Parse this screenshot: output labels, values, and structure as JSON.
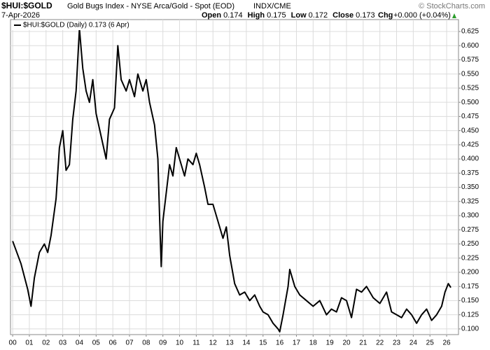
{
  "chart_data": {
    "type": "line",
    "title": "$HUI:$GOLD",
    "subtitle": "Gold Bugs Index - NYSE Arca/Gold - Spot (EOD)",
    "exchange": "INDX/CME",
    "source": "© StockCharts.com",
    "date": "7-Apr-2026",
    "ohlc": [
      {
        "label": "Open",
        "value": 0.174
      },
      {
        "label": "High",
        "value": 0.175
      },
      {
        "label": "Low",
        "value": 0.172
      },
      {
        "label": "Close",
        "value": 0.173
      }
    ],
    "change_label": "Chg",
    "change": "+0.000 (+0.04%)",
    "grid": true,
    "xlim": [
      1999.87,
      2026.71
    ],
    "ylim": [
      0.09,
      0.646
    ],
    "xticks": [
      {
        "value": 2000,
        "label": "00"
      },
      {
        "value": 2001,
        "label": "01"
      },
      {
        "value": 2002,
        "label": "02"
      },
      {
        "value": 2003,
        "label": "03"
      },
      {
        "value": 2004,
        "label": "04"
      },
      {
        "value": 2005,
        "label": "05"
      },
      {
        "value": 2006,
        "label": "06"
      },
      {
        "value": 2007,
        "label": "07"
      },
      {
        "value": 2008,
        "label": "08"
      },
      {
        "value": 2009,
        "label": "09"
      },
      {
        "value": 2010,
        "label": "10"
      },
      {
        "value": 2011,
        "label": "11"
      },
      {
        "value": 2012,
        "label": "12"
      },
      {
        "value": 2013,
        "label": "13"
      },
      {
        "value": 2014,
        "label": "14"
      },
      {
        "value": 2015,
        "label": "15"
      },
      {
        "value": 2016,
        "label": "16"
      },
      {
        "value": 2017,
        "label": "17"
      },
      {
        "value": 2018,
        "label": "18"
      },
      {
        "value": 2019,
        "label": "19"
      },
      {
        "value": 2020,
        "label": "20"
      },
      {
        "value": 2021,
        "label": "21"
      },
      {
        "value": 2022,
        "label": "22"
      },
      {
        "value": 2023,
        "label": "23"
      },
      {
        "value": 2024,
        "label": "24"
      },
      {
        "value": 2025,
        "label": "25"
      },
      {
        "value": 2026,
        "label": "26"
      }
    ],
    "yticks": [
      {
        "value": 0.1,
        "label": "0.100"
      },
      {
        "value": 0.125,
        "label": "0.125"
      },
      {
        "value": 0.15,
        "label": "0.150"
      },
      {
        "value": 0.175,
        "label": "0.175"
      },
      {
        "value": 0.2,
        "label": "0.200"
      },
      {
        "value": 0.225,
        "label": "0.225"
      },
      {
        "value": 0.25,
        "label": "0.250"
      },
      {
        "value": 0.275,
        "label": "0.275"
      },
      {
        "value": 0.3,
        "label": "0.300"
      },
      {
        "value": 0.325,
        "label": "0.325"
      },
      {
        "value": 0.35,
        "label": "0.350"
      },
      {
        "value": 0.375,
        "label": "0.375"
      },
      {
        "value": 0.4,
        "label": "0.400"
      },
      {
        "value": 0.425,
        "label": "0.425"
      },
      {
        "value": 0.45,
        "label": "0.450"
      },
      {
        "value": 0.475,
        "label": "0.475"
      },
      {
        "value": 0.5,
        "label": "0.500"
      },
      {
        "value": 0.525,
        "label": "0.525"
      },
      {
        "value": 0.55,
        "label": "0.550"
      },
      {
        "value": 0.575,
        "label": "0.575"
      },
      {
        "value": 0.6,
        "label": "0.600"
      },
      {
        "value": 0.625,
        "label": "0.625"
      }
    ],
    "x": [
      2000.0,
      2000.5,
      2000.9,
      2001.1,
      2001.3,
      2001.6,
      2001.9,
      2002.1,
      2002.3,
      2002.6,
      2002.8,
      2003.0,
      2003.2,
      2003.4,
      2003.6,
      2003.8,
      2004.0,
      2004.2,
      2004.4,
      2004.6,
      2004.8,
      2005.0,
      2005.3,
      2005.6,
      2005.8,
      2006.1,
      2006.3,
      2006.5,
      2006.8,
      2007.0,
      2007.3,
      2007.5,
      2007.8,
      2008.0,
      2008.2,
      2008.5,
      2008.7,
      2008.8,
      2008.9,
      2009.0,
      2009.2,
      2009.4,
      2009.6,
      2009.8,
      2010.0,
      2010.3,
      2010.5,
      2010.8,
      2011.0,
      2011.2,
      2011.5,
      2011.7,
      2012.0,
      2012.3,
      2012.6,
      2012.8,
      2013.0,
      2013.3,
      2013.6,
      2013.9,
      2014.2,
      2014.5,
      2014.8,
      2015.0,
      2015.3,
      2015.6,
      2015.9,
      2016.0,
      2016.2,
      2016.5,
      2016.6,
      2016.9,
      2017.2,
      2017.6,
      2018.0,
      2018.4,
      2018.8,
      2019.1,
      2019.4,
      2019.7,
      2020.0,
      2020.3,
      2020.6,
      2020.9,
      2021.2,
      2021.6,
      2022.0,
      2022.4,
      2022.7,
      2023.0,
      2023.3,
      2023.6,
      2023.9,
      2024.2,
      2024.5,
      2024.8,
      2025.1,
      2025.4,
      2025.7,
      2025.9,
      2026.1,
      2026.25
    ],
    "series": [
      {
        "name": "$HUI:$GOLD (Daily) 0.173 (6 Apr)",
        "color": "#000000",
        "values": [
          0.255,
          0.215,
          0.17,
          0.14,
          0.19,
          0.235,
          0.25,
          0.235,
          0.265,
          0.33,
          0.42,
          0.45,
          0.38,
          0.39,
          0.47,
          0.52,
          0.63,
          0.56,
          0.52,
          0.5,
          0.54,
          0.48,
          0.44,
          0.4,
          0.47,
          0.49,
          0.6,
          0.54,
          0.52,
          0.54,
          0.51,
          0.55,
          0.52,
          0.54,
          0.5,
          0.46,
          0.4,
          0.3,
          0.21,
          0.29,
          0.34,
          0.39,
          0.37,
          0.42,
          0.4,
          0.37,
          0.4,
          0.39,
          0.41,
          0.39,
          0.35,
          0.32,
          0.32,
          0.29,
          0.26,
          0.28,
          0.23,
          0.18,
          0.16,
          0.165,
          0.15,
          0.16,
          0.14,
          0.13,
          0.125,
          0.11,
          0.1,
          0.095,
          0.125,
          0.175,
          0.205,
          0.175,
          0.16,
          0.15,
          0.14,
          0.15,
          0.125,
          0.135,
          0.13,
          0.155,
          0.15,
          0.12,
          0.17,
          0.165,
          0.175,
          0.155,
          0.145,
          0.165,
          0.13,
          0.125,
          0.12,
          0.135,
          0.125,
          0.11,
          0.125,
          0.135,
          0.115,
          0.125,
          0.14,
          0.165,
          0.18,
          0.173
        ]
      }
    ]
  }
}
